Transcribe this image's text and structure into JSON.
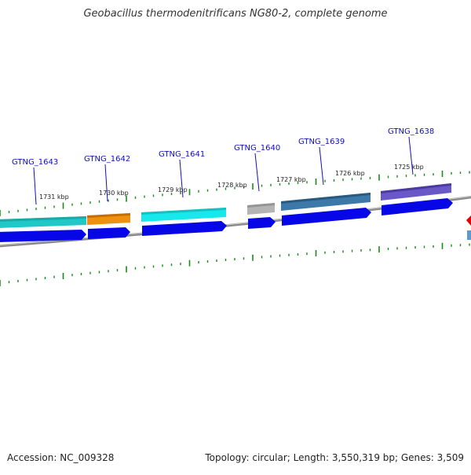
{
  "title": "Geobacillus thermodenitrificans NG80-2, complete genome",
  "footer": {
    "accession": "Accession: NC_009328",
    "summary": "Topology: circular; Length: 3,550,319 bp; Genes: 3,509"
  },
  "ticks": [
    {
      "label": "1731 kbp"
    },
    {
      "label": "1730 kbp"
    },
    {
      "label": "1729 kbp"
    },
    {
      "label": "1728 kbp"
    },
    {
      "label": "1727 kbp"
    },
    {
      "label": "1726 kbp"
    },
    {
      "label": "1725 kbp"
    }
  ],
  "genes": [
    {
      "label": "GTNG_1643",
      "color": "#20c8c8",
      "strand": "-"
    },
    {
      "label": "GTNG_1642",
      "color": "#f0900f",
      "strand": "-"
    },
    {
      "label": "GTNG_1641",
      "color": "#18e8ec",
      "strand": "-"
    },
    {
      "label": "GTNG_1640",
      "color": "#b4b4b4",
      "strand": "-"
    },
    {
      "label": "GTNG_1639",
      "color": "#3c78a8",
      "strand": "-"
    },
    {
      "label": "GTNG_1638",
      "color": "#6a58c8",
      "strand": "-"
    }
  ],
  "colors": {
    "cds_arrow": "#0606e6",
    "backbone": "#8a8a8a",
    "tick": "#1a8a1a",
    "label_line": "#1010b8",
    "offscreen_feature": "#e80000",
    "offscreen_feature_2": "#5a9ad0"
  }
}
